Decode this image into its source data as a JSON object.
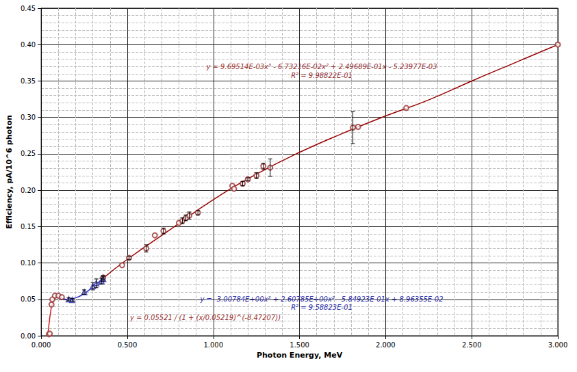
{
  "chart_data": {
    "type": "scatter",
    "x_label": "Photon Energy, MeV",
    "y_label": "Efficiency, pA/10^6 photon",
    "xlim": [
      0,
      3
    ],
    "ylim": [
      0,
      0.45
    ],
    "xticks": [
      {
        "value": 0,
        "label": "0.000"
      },
      {
        "value": 0.5,
        "label": "0.500"
      },
      {
        "value": 1,
        "label": "1.000"
      },
      {
        "value": 1.5,
        "label": "1.500"
      },
      {
        "value": 2,
        "label": "2.000"
      },
      {
        "value": 2.5,
        "label": "2.500"
      },
      {
        "value": 3,
        "label": "3.000"
      }
    ],
    "yticks": [
      {
        "value": 0,
        "label": "0.00"
      },
      {
        "value": 0.05,
        "label": "0.05"
      },
      {
        "value": 0.1,
        "label": "0.10"
      },
      {
        "value": 0.15,
        "label": "0.15"
      },
      {
        "value": 0.2,
        "label": "0.20"
      },
      {
        "value": 0.25,
        "label": "0.25"
      },
      {
        "value": 0.3,
        "label": "0.30"
      },
      {
        "value": 0.35,
        "label": "0.35"
      },
      {
        "value": 0.4,
        "label": "0.40"
      },
      {
        "value": 0.45,
        "label": "0.45"
      }
    ],
    "grid": true,
    "annotations": [
      "y = 9.69514E-03x³ - 6.73216E-02x² + 2.49689E-01x - 5.23977E-03",
      "R² = 9.98822E-01",
      "y = -3.00784E+00x³ + 2.60785E+00x² - 5.84923E-01x + 8.96355E-02",
      "R² = 9.58823E-01",
      "y = 0.05521 / (1 + (x/0.05219)^(-8.47207))"
    ],
    "series": [
      {
        "type": "scatter",
        "marker": "circle",
        "color": "#993333",
        "x": [
          0.045,
          0.05,
          0.06,
          0.065,
          0.08,
          0.1,
          0.12,
          0.36,
          0.47,
          0.51,
          0.61,
          0.66,
          0.71,
          0.8,
          0.82,
          0.84,
          0.86,
          0.91,
          1.11,
          1.12,
          1.17,
          1.2,
          1.25,
          1.29,
          1.33,
          1.81,
          1.84,
          2.12,
          3.0
        ],
        "values": [
          0.002,
          0.003,
          0.043,
          0.05,
          0.055,
          0.055,
          0.053,
          0.08,
          0.097,
          0.107,
          0.12,
          0.138,
          0.144,
          0.155,
          0.158,
          0.162,
          0.165,
          0.169,
          0.206,
          0.202,
          0.209,
          0.215,
          0.22,
          0.233,
          0.231,
          0.286,
          0.287,
          0.313,
          0.4
        ],
        "errors": [
          0,
          0,
          0,
          0,
          0,
          0,
          0,
          0.003,
          0,
          0.002,
          0.005,
          0,
          0.004,
          0,
          0.004,
          0.004,
          0.005,
          0.003,
          0,
          0,
          0.003,
          0.002,
          0.004,
          0.004,
          0.012,
          0.022,
          0,
          0,
          0
        ]
      },
      {
        "type": "scatter",
        "marker": "triangle",
        "color": "#3333aa",
        "x": [
          0.16,
          0.18,
          0.25,
          0.3,
          0.32,
          0.35,
          0.36
        ],
        "values": [
          0.05,
          0.049,
          0.06,
          0.068,
          0.072,
          0.075,
          0.078
        ],
        "errors": [
          0.002,
          0.002,
          0.003,
          0.005,
          0.006,
          0.004,
          0.003
        ]
      },
      {
        "type": "line",
        "marker": "none",
        "line_style": "solid",
        "color": "#990000",
        "x": [
          0.36,
          0.5,
          0.75,
          1.0,
          1.25,
          1.5,
          1.75,
          2.0,
          2.25,
          2.5,
          2.75,
          3.0
        ],
        "values": [
          0.079,
          0.105,
          0.146,
          0.187,
          0.222,
          0.252,
          0.278,
          0.302,
          0.324,
          0.35,
          0.375,
          0.4
        ]
      },
      {
        "type": "line",
        "marker": "none",
        "line_style": "solid",
        "color": "#3333cc",
        "x": [
          0.1,
          0.15,
          0.2,
          0.25,
          0.3,
          0.36
        ],
        "values": [
          0.055,
          0.05,
          0.052,
          0.058,
          0.067,
          0.079
        ]
      },
      {
        "type": "line",
        "marker": "none",
        "line_style": "solid",
        "color": "#cc2222",
        "x": [
          0.03,
          0.04,
          0.045,
          0.05,
          0.055,
          0.06,
          0.07,
          0.08,
          0.1
        ],
        "values": [
          0.001,
          0.006,
          0.015,
          0.025,
          0.033,
          0.04,
          0.048,
          0.052,
          0.054
        ]
      }
    ]
  }
}
